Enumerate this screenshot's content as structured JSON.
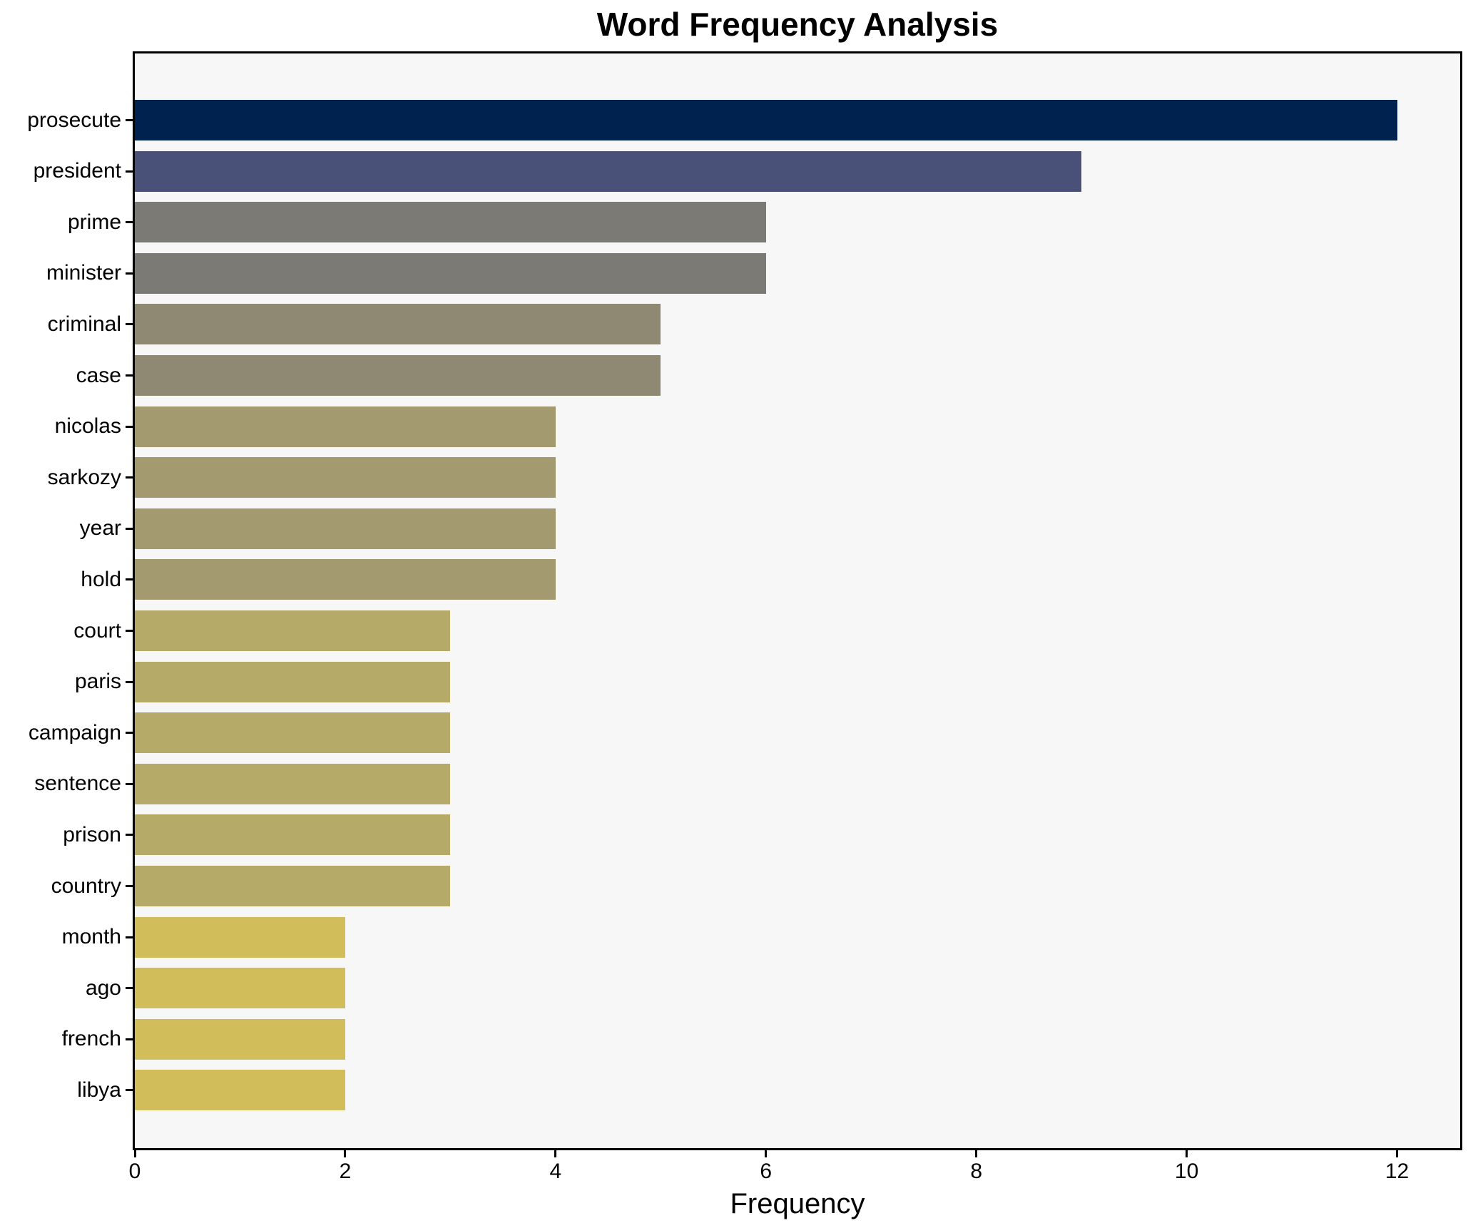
{
  "chart_data": {
    "type": "bar",
    "orientation": "horizontal",
    "title": "Word Frequency Analysis",
    "xlabel": "Frequency",
    "ylabel": "",
    "categories": [
      "prosecute",
      "president",
      "prime",
      "minister",
      "criminal",
      "case",
      "nicolas",
      "sarkozy",
      "year",
      "hold",
      "court",
      "paris",
      "campaign",
      "sentence",
      "prison",
      "country",
      "month",
      "ago",
      "french",
      "libya"
    ],
    "values": [
      12,
      9,
      6,
      6,
      5,
      5,
      4,
      4,
      4,
      4,
      3,
      3,
      3,
      3,
      3,
      3,
      2,
      2,
      2,
      2
    ],
    "bar_colors": [
      "#00224e",
      "#4a5178",
      "#7b7a74",
      "#7b7a74",
      "#8f8974",
      "#8f8974",
      "#a39a70",
      "#a39a70",
      "#a39a70",
      "#a39a70",
      "#b5aa67",
      "#b5aa67",
      "#b5aa67",
      "#b5aa67",
      "#b5aa67",
      "#b5aa67",
      "#d2bd5b",
      "#d2bd5b",
      "#d2bd5b",
      "#d2bd5b"
    ],
    "xlim": [
      0,
      12.6
    ],
    "xticks": [
      0,
      2,
      4,
      6,
      8,
      10,
      12
    ],
    "grid": false,
    "legend": null,
    "plot_background": "#f7f7f7",
    "figure_background": "#ffffff",
    "spine_color": "#000000",
    "text_color": "#000000"
  }
}
